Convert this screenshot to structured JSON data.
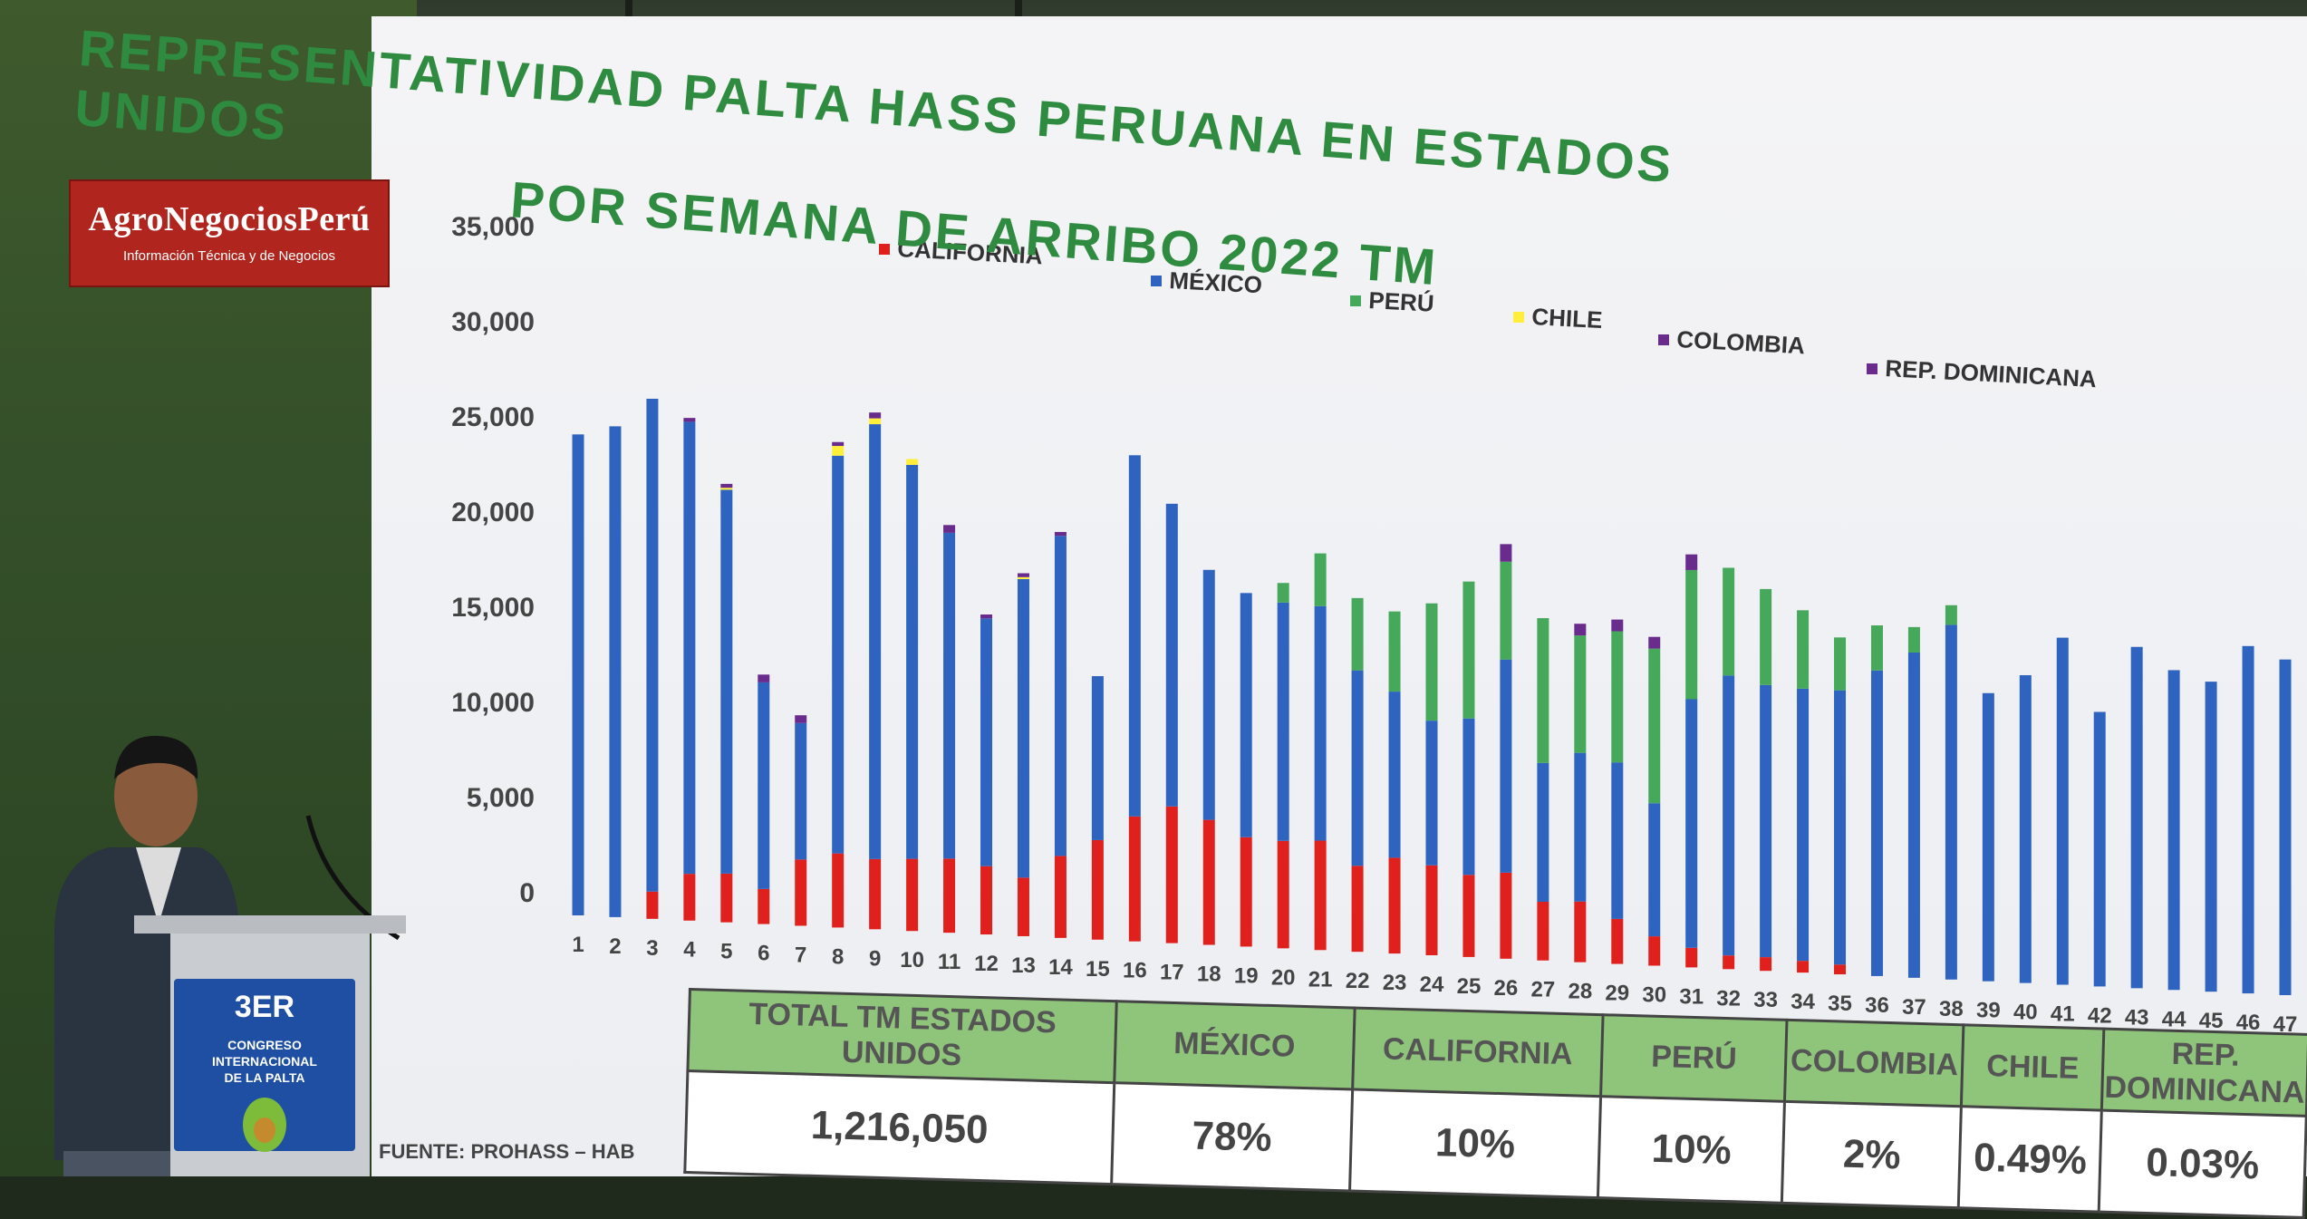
{
  "logo": {
    "name": "AgroNegociosPerú",
    "tagline": "Información Técnica y de Negocios"
  },
  "podium": {
    "line1": "3ER",
    "line2": "CONGRESO",
    "line3": "INTERNACIONAL",
    "line4": "DE LA PALTA"
  },
  "chart_data": {
    "type": "bar",
    "stacked": true,
    "title": "REPRESENTATIVIDAD PALTA HASS PERUANA EN ESTADOS UNIDOS POR SEMANA DE ARRIBO 2022 TM",
    "title_line1": "REPRESENTATIVIDAD PALTA HASS PERUANA EN ESTADOS UNIDOS",
    "title_line2": "POR SEMANA DE ARRIBO 2022 TM",
    "ylim": [
      0,
      35000
    ],
    "yticks": [
      "35,000",
      "30,000",
      "25,000",
      "20,000",
      "15,000",
      "10,000",
      "5,000",
      "0"
    ],
    "legend_position": "top",
    "categories": [
      "1",
      "2",
      "3",
      "4",
      "5",
      "6",
      "7",
      "8",
      "9",
      "10",
      "11",
      "12",
      "13",
      "14",
      "15",
      "16",
      "17",
      "18",
      "19",
      "20",
      "21",
      "22",
      "23",
      "24",
      "25",
      "26",
      "27",
      "28",
      "29",
      "30",
      "31",
      "32",
      "33",
      "34",
      "35",
      "36",
      "37",
      "38",
      "39",
      "40",
      "41",
      "42",
      "43",
      "44",
      "45",
      "46",
      "47"
    ],
    "series": [
      {
        "name": "CALIFORNIA",
        "color": "#e0201c",
        "values": [
          0,
          0,
          1400,
          2400,
          2500,
          1800,
          3400,
          3800,
          3600,
          3700,
          3800,
          3500,
          3000,
          4200,
          5100,
          6400,
          7000,
          6400,
          5600,
          5500,
          5600,
          4400,
          4900,
          4600,
          4200,
          4400,
          3000,
          3100,
          2300,
          1500,
          1000,
          700,
          700,
          600,
          500,
          0,
          0,
          0,
          0,
          0,
          0,
          0,
          0,
          0,
          0,
          0,
          0
        ]
      },
      {
        "name": "MÉXICO",
        "color": "#2e63c0",
        "values": [
          24700,
          25200,
          25300,
          23200,
          19700,
          10600,
          7000,
          20400,
          22300,
          20200,
          16700,
          12700,
          15300,
          16400,
          8400,
          18500,
          15500,
          12800,
          12500,
          12200,
          12000,
          10000,
          8500,
          7400,
          8000,
          10900,
          7100,
          7600,
          8000,
          6800,
          12700,
          14300,
          13900,
          13900,
          14000,
          15600,
          16600,
          18100,
          14700,
          15700,
          17700,
          14000,
          17400,
          16300,
          15800,
          17700,
          17100
        ]
      },
      {
        "name": "PERÚ",
        "color": "#45a85a",
        "values": [
          0,
          0,
          0,
          0,
          0,
          0,
          0,
          0,
          0,
          0,
          0,
          0,
          0,
          0,
          0,
          0,
          0,
          0,
          0,
          0,
          0,
          0,
          0,
          0,
          0,
          0,
          0,
          0,
          0,
          0,
          0,
          0,
          0,
          0,
          0,
          0,
          0,
          0,
          0,
          0,
          0,
          0,
          0,
          0,
          0,
          0,
          0
        ]
      },
      {
        "name": "CHILE",
        "color": "#ffef3a",
        "values": [
          0,
          0,
          0,
          0,
          100,
          0,
          0,
          500,
          300,
          300,
          0,
          0,
          100,
          0,
          0,
          0,
          0,
          0,
          0,
          0,
          0,
          0,
          0,
          0,
          0,
          0,
          0,
          0,
          0,
          0,
          0,
          0,
          0,
          0,
          0,
          0,
          0,
          0,
          0,
          0,
          0,
          0,
          0,
          0,
          0,
          0,
          0
        ]
      },
      {
        "name": "COLOMBIA",
        "color": "#6a2c8c",
        "values": [
          0,
          0,
          0,
          200,
          200,
          400,
          400,
          200,
          300,
          0,
          400,
          200,
          200,
          200,
          0,
          0,
          0,
          0,
          0,
          0,
          0,
          0,
          0,
          0,
          0,
          0,
          0,
          0,
          0,
          0,
          0,
          0,
          0,
          0,
          0,
          0,
          0,
          0,
          0,
          0,
          0,
          0,
          0,
          0,
          0,
          0,
          0
        ]
      },
      {
        "name": "REP. DOMINICANA",
        "color": "#6a2c8c",
        "values": [
          0,
          0,
          0,
          0,
          0,
          0,
          0,
          0,
          0,
          0,
          0,
          0,
          0,
          0,
          0,
          0,
          0,
          0,
          0,
          0,
          0,
          0,
          0,
          0,
          0,
          0,
          0,
          0,
          0,
          0,
          0,
          0,
          0,
          0,
          0,
          0,
          0,
          0,
          0,
          0,
          0,
          0,
          0,
          0,
          0,
          0,
          0
        ]
      }
    ],
    "peru_values": [
      0,
      0,
      0,
      0,
      0,
      0,
      0,
      0,
      0,
      0,
      0,
      0,
      0,
      0,
      0,
      0,
      0,
      0,
      0,
      1000,
      2700,
      3700,
      4100,
      6000,
      7000,
      5000,
      7400,
      6000,
      6700,
      7900,
      6600,
      5500,
      4900,
      4000,
      2700,
      2300,
      1300,
      1000,
      0,
      0,
      0,
      0,
      0,
      0,
      0,
      0,
      0
    ],
    "colombia_late": [
      0,
      0,
      0,
      0,
      0,
      0,
      0,
      0,
      0,
      0,
      0,
      0,
      0,
      0,
      0,
      0,
      0,
      0,
      0,
      0,
      0,
      0,
      0,
      0,
      0,
      900,
      0,
      600,
      600,
      600,
      800,
      0,
      0,
      0,
      0,
      0,
      0,
      0,
      0,
      0,
      0,
      0,
      0,
      0,
      0,
      0,
      0
    ],
    "summary": {
      "headers": [
        "TOTAL TM ESTADOS UNIDOS",
        "MÉXICO",
        "CALIFORNIA",
        "PERÚ",
        "COLOMBIA",
        "CHILE",
        "REP. DOMINICANA"
      ],
      "values": [
        "1,216,050",
        "78%",
        "10%",
        "10%",
        "2%",
        "0.49%",
        "0.03%"
      ]
    },
    "source": "FUENTE: PROHASS – HAB"
  }
}
